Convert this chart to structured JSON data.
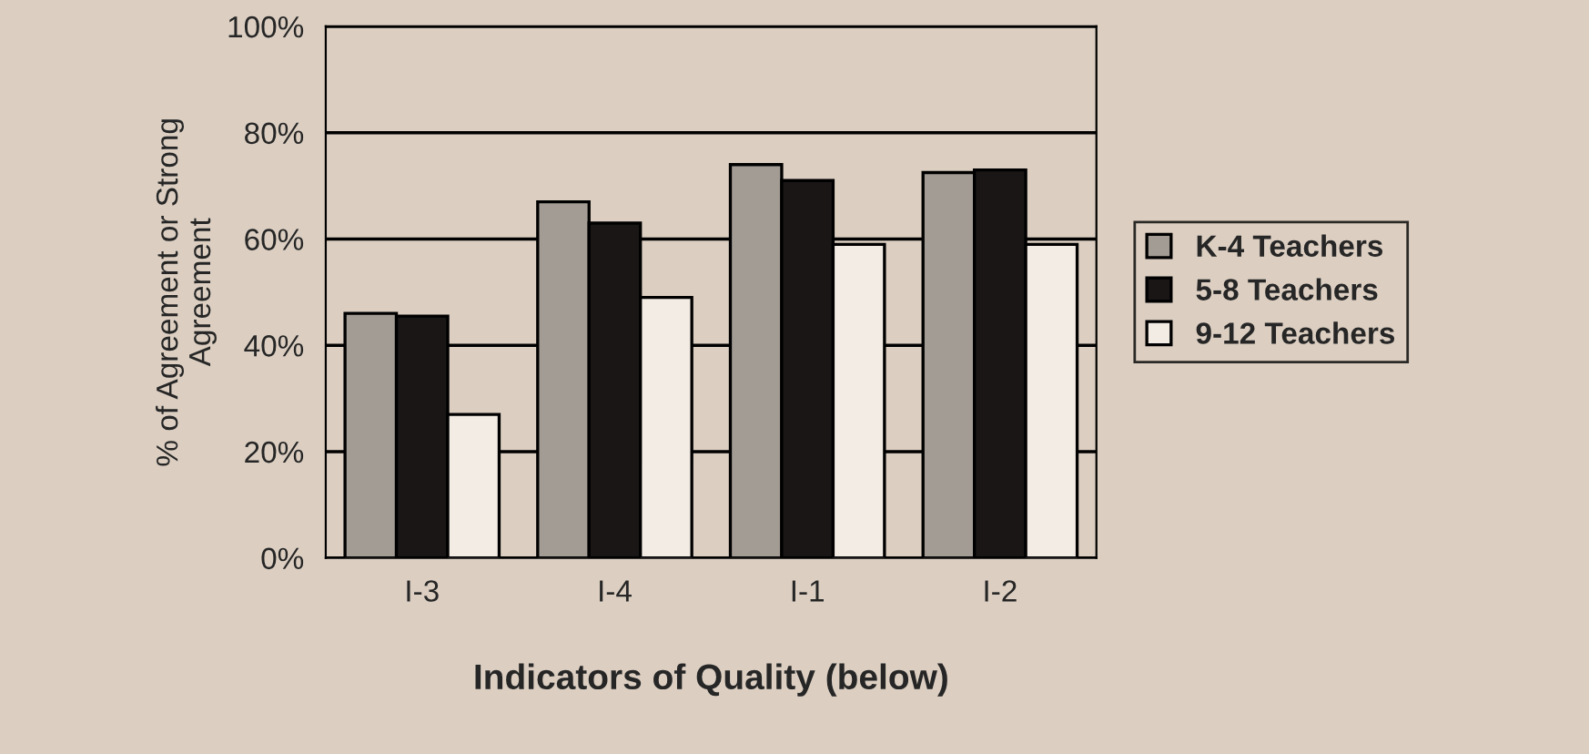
{
  "chart_data": {
    "type": "bar",
    "xlabel": "Indicators of Quality (below)",
    "ylabel": "% of Agreement or Strong\nAgreement",
    "categories": [
      "I-3",
      "I-4",
      "I-1",
      "I-2"
    ],
    "series": [
      {
        "name": "K-4 Teachers",
        "color": "#a39c95",
        "values": [
          46,
          67,
          74,
          72.5
        ]
      },
      {
        "name": "5-8 Teachers",
        "color": "#1a1616",
        "values": [
          45.5,
          63,
          71,
          73
        ]
      },
      {
        "name": "9-12 Teachers",
        "color": "#f3ece4",
        "values": [
          27,
          49,
          59,
          59
        ]
      }
    ],
    "ylim": [
      0,
      100
    ],
    "yticks": [
      {
        "value": 0,
        "label": "0%"
      },
      {
        "value": 20,
        "label": "20%"
      },
      {
        "value": 40,
        "label": "40%"
      },
      {
        "value": 60,
        "label": "60%"
      },
      {
        "value": 80,
        "label": "80%"
      },
      {
        "value": 100,
        "label": "100%"
      }
    ],
    "grid": "y",
    "legend": "right"
  }
}
